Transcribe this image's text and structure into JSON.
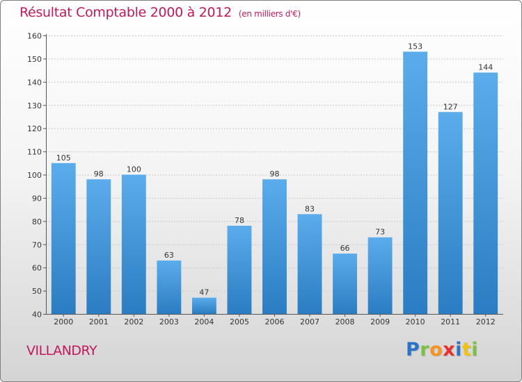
{
  "title": "Résultat Comptable 2000 à 2012",
  "subtitle": "(en milliers d'€)",
  "place": "VILLANDRY",
  "logo": {
    "letters": [
      "P",
      "r",
      "o",
      "x",
      "i",
      "t",
      "i"
    ],
    "colors": [
      "#2b73c8",
      "#7cc242",
      "#f7941d",
      "#e8312f",
      "#2b73c8",
      "#f4c20d",
      "#7cc242"
    ]
  },
  "chart_data": {
    "type": "bar",
    "title": "Résultat Comptable 2000 à 2012",
    "subtitle": "(en milliers d'€)",
    "categories": [
      "2000",
      "2001",
      "2002",
      "2003",
      "2004",
      "2005",
      "2006",
      "2007",
      "2008",
      "2009",
      "2010",
      "2011",
      "2012"
    ],
    "values": [
      105,
      98,
      100,
      63,
      47,
      78,
      98,
      83,
      66,
      73,
      153,
      127,
      144
    ],
    "value_labels": [
      "105",
      "98",
      "100",
      "63",
      "47",
      "78",
      "98",
      "83",
      "66",
      "73",
      "153",
      "127",
      "144"
    ],
    "ylim": [
      40,
      160
    ],
    "yticks": [
      40,
      50,
      60,
      70,
      80,
      90,
      100,
      110,
      120,
      130,
      140,
      150,
      160
    ],
    "ytick_labels": [
      "40",
      "50",
      "60",
      "70",
      "80",
      "90",
      "100",
      "110",
      "120",
      "130",
      "140",
      "150",
      "160"
    ],
    "grid": true,
    "xlabel": "",
    "ylabel": "",
    "bar_color_top": "#5aaceb",
    "bar_color_bottom": "#2a7dc2"
  }
}
